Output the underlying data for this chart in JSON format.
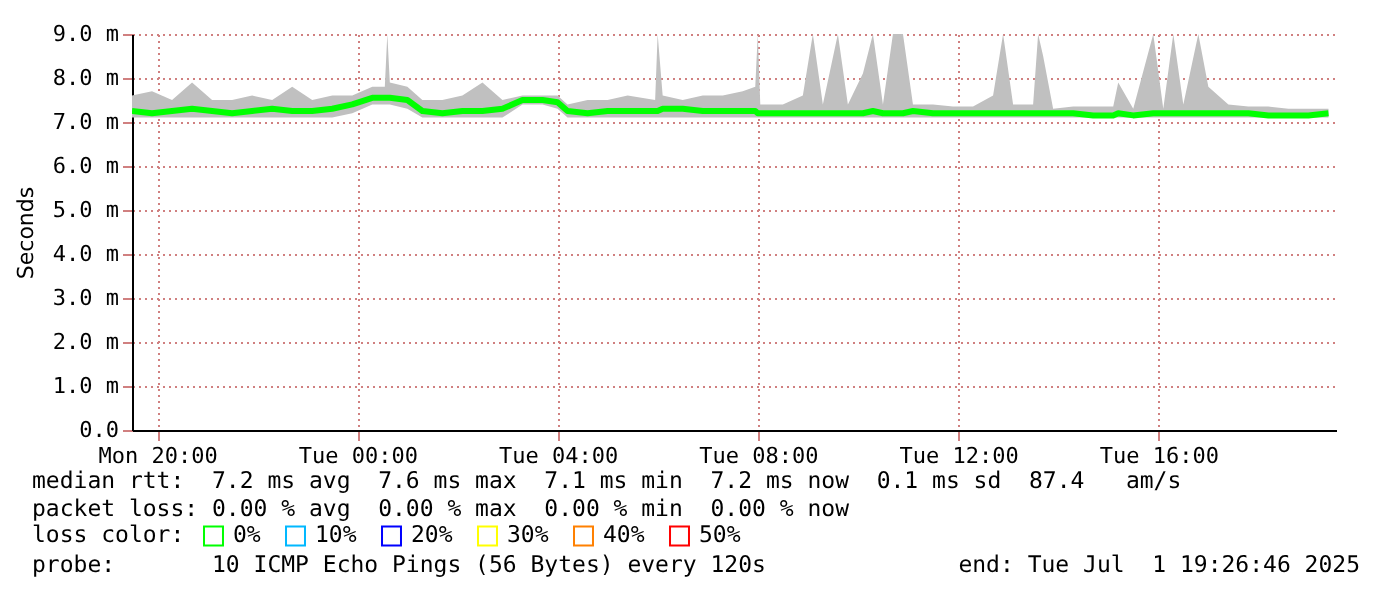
{
  "chart_data": {
    "type": "line",
    "ylabel": "Seconds",
    "legend_title": "loss color:",
    "legend": "bottom",
    "grid": true,
    "xlim": [
      "2025-06-30T19:30",
      "2025-07-01T19:33"
    ],
    "xticks": [
      {
        "value": "2025-06-30T20:00",
        "label": "Mon 20:00"
      },
      {
        "value": "2025-07-01T00:00",
        "label": "Tue 00:00"
      },
      {
        "value": "2025-07-01T04:00",
        "label": "Tue 04:00"
      },
      {
        "value": "2025-07-01T08:00",
        "label": "Tue 08:00"
      },
      {
        "value": "2025-07-01T12:00",
        "label": "Tue 12:00"
      },
      {
        "value": "2025-07-01T16:00",
        "label": "Tue 16:00"
      }
    ],
    "ylim": [
      0,
      9
    ],
    "yticks": [
      {
        "value": 0,
        "label": "0.0"
      },
      {
        "value": 1,
        "label": "1.0 m"
      },
      {
        "value": 2,
        "label": "2.0 m"
      },
      {
        "value": 3,
        "label": "3.0 m"
      },
      {
        "value": 4,
        "label": "4.0 m"
      },
      {
        "value": 5,
        "label": "5.0 m"
      },
      {
        "value": 6,
        "label": "6.0 m"
      },
      {
        "value": 7,
        "label": "7.0 m"
      },
      {
        "value": 8,
        "label": "8.0 m"
      },
      {
        "value": 9,
        "label": "9.0 m"
      }
    ],
    "series": [
      {
        "name": "0%",
        "color": "#00ff00",
        "x": [
          "2025-06-30T19:30",
          "2025-06-30T19:54",
          "2025-06-30T20:18",
          "2025-06-30T20:42",
          "2025-06-30T21:06",
          "2025-06-30T21:30",
          "2025-06-30T21:54",
          "2025-06-30T22:18",
          "2025-06-30T22:42",
          "2025-06-30T23:06",
          "2025-06-30T23:30",
          "2025-06-30T23:54",
          "2025-07-01T00:18",
          "2025-07-01T00:33",
          "2025-07-01T00:36",
          "2025-07-01T00:39",
          "2025-07-01T01:00",
          "2025-07-01T01:18",
          "2025-07-01T01:42",
          "2025-07-01T02:06",
          "2025-07-01T02:30",
          "2025-07-01T02:54",
          "2025-07-01T03:18",
          "2025-07-01T03:42",
          "2025-07-01T04:00",
          "2025-07-01T04:12",
          "2025-07-01T04:36",
          "2025-07-01T05:00",
          "2025-07-01T05:24",
          "2025-07-01T05:57",
          "2025-07-01T06:00",
          "2025-07-01T06:06",
          "2025-07-01T06:30",
          "2025-07-01T06:54",
          "2025-07-01T07:18",
          "2025-07-01T07:42",
          "2025-07-01T07:57",
          "2025-07-01T08:00",
          "2025-07-01T08:03",
          "2025-07-01T08:30",
          "2025-07-01T08:54",
          "2025-07-01T09:06",
          "2025-07-01T09:18",
          "2025-07-01T09:36",
          "2025-07-01T09:48",
          "2025-07-01T10:06",
          "2025-07-01T10:18",
          "2025-07-01T10:30",
          "2025-07-01T10:42",
          "2025-07-01T10:54",
          "2025-07-01T11:06",
          "2025-07-01T11:30",
          "2025-07-01T11:54",
          "2025-07-01T12:18",
          "2025-07-01T12:42",
          "2025-07-01T12:54",
          "2025-07-01T13:06",
          "2025-07-01T13:30",
          "2025-07-01T13:36",
          "2025-07-01T13:42",
          "2025-07-01T13:54",
          "2025-07-01T14:18",
          "2025-07-01T14:42",
          "2025-07-01T15:06",
          "2025-07-01T15:12",
          "2025-07-01T15:30",
          "2025-07-01T15:54",
          "2025-07-01T16:06",
          "2025-07-01T16:18",
          "2025-07-01T16:30",
          "2025-07-01T16:48",
          "2025-07-01T17:00",
          "2025-07-01T17:24",
          "2025-07-01T17:48",
          "2025-07-01T18:12",
          "2025-07-01T18:36",
          "2025-07-01T19:00",
          "2025-07-01T19:24"
        ],
        "values": [
          7.25,
          7.2,
          7.25,
          7.3,
          7.25,
          7.2,
          7.25,
          7.3,
          7.25,
          7.25,
          7.3,
          7.4,
          7.55,
          7.55,
          7.55,
          7.55,
          7.5,
          7.25,
          7.2,
          7.25,
          7.25,
          7.3,
          7.5,
          7.5,
          7.45,
          7.25,
          7.2,
          7.25,
          7.25,
          7.25,
          7.25,
          7.3,
          7.3,
          7.25,
          7.25,
          7.25,
          7.25,
          7.2,
          7.2,
          7.2,
          7.2,
          7.2,
          7.2,
          7.2,
          7.2,
          7.2,
          7.25,
          7.2,
          7.2,
          7.2,
          7.25,
          7.2,
          7.2,
          7.2,
          7.2,
          7.2,
          7.2,
          7.2,
          7.2,
          7.2,
          7.2,
          7.2,
          7.15,
          7.15,
          7.2,
          7.15,
          7.2,
          7.2,
          7.2,
          7.2,
          7.2,
          7.2,
          7.2,
          7.2,
          7.15,
          7.15,
          7.15,
          7.2
        ],
        "lower": [
          7.1,
          7.1,
          7.1,
          7.1,
          7.1,
          7.1,
          7.1,
          7.1,
          7.1,
          7.1,
          7.1,
          7.2,
          7.4,
          7.4,
          7.4,
          7.4,
          7.3,
          7.1,
          7.1,
          7.1,
          7.1,
          7.1,
          7.4,
          7.4,
          7.3,
          7.1,
          7.1,
          7.1,
          7.1,
          7.1,
          7.1,
          7.1,
          7.1,
          7.1,
          7.1,
          7.1,
          7.1,
          7.1,
          7.1,
          7.1,
          7.1,
          7.1,
          7.1,
          7.1,
          7.1,
          7.1,
          7.1,
          7.1,
          7.1,
          7.1,
          7.1,
          7.1,
          7.1,
          7.1,
          7.1,
          7.1,
          7.1,
          7.1,
          7.1,
          7.1,
          7.1,
          7.1,
          7.1,
          7.1,
          7.1,
          7.1,
          7.1,
          7.1,
          7.1,
          7.1,
          7.1,
          7.1,
          7.1,
          7.1,
          7.1,
          7.1,
          7.1,
          7.1
        ],
        "upper": [
          7.6,
          7.7,
          7.5,
          7.9,
          7.5,
          7.5,
          7.6,
          7.5,
          7.8,
          7.5,
          7.6,
          7.6,
          7.8,
          7.8,
          9.0,
          7.9,
          7.8,
          7.5,
          7.5,
          7.6,
          7.9,
          7.5,
          7.6,
          7.6,
          7.6,
          7.4,
          7.5,
          7.5,
          7.6,
          7.5,
          9.0,
          7.6,
          7.5,
          7.6,
          7.6,
          7.7,
          7.8,
          9.0,
          7.4,
          7.4,
          7.6,
          9.0,
          7.4,
          9.0,
          7.4,
          8.1,
          9.0,
          7.4,
          9.0,
          9.0,
          7.4,
          7.4,
          7.35,
          7.35,
          7.6,
          9.0,
          7.4,
          7.4,
          9.0,
          8.5,
          7.3,
          7.35,
          7.35,
          7.35,
          7.9,
          7.3,
          9.0,
          7.3,
          9.0,
          7.4,
          9.0,
          7.8,
          7.4,
          7.35,
          7.35,
          7.3,
          7.3,
          7.3
        ]
      },
      {
        "name": "10%",
        "color": "#00b8ff"
      },
      {
        "name": "20%",
        "color": "#0000ff"
      },
      {
        "name": "30%",
        "color": "#ffff00"
      },
      {
        "name": "40%",
        "color": "#ff8000"
      },
      {
        "name": "50%",
        "color": "#ff0000"
      }
    ],
    "annotations": [
      "median rtt:  7.2 ms avg  7.6 ms max  7.1 ms min  7.2 ms now  0.1 ms sd  87.4   am/s",
      "packet loss: 0.00 % avg  0.00 % max  0.00 % min  0.00 % now",
      "probe:       10 ICMP Echo Pings (56 Bytes) every 120s",
      "end: Tue Jul  1 19:26:46 2025"
    ]
  }
}
